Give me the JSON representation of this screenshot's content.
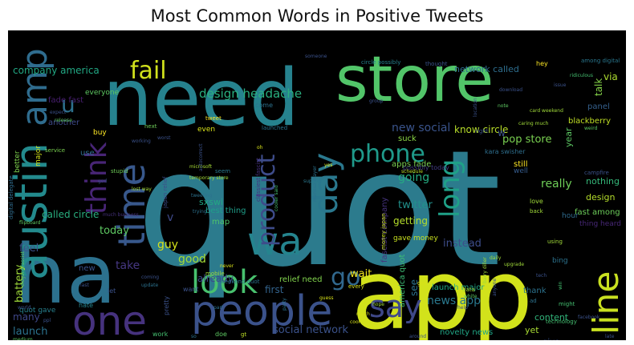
{
  "chart_data": {
    "type": "wordcloud",
    "title": "Most Common Words in Positive Tweets",
    "background": "#000000",
    "colormap": "viridis",
    "words": [
      {
        "text": "quot",
        "size": 200,
        "color": "#2c7b8d"
      },
      {
        "text": "app",
        "size": 120,
        "color": "#d2e21b"
      },
      {
        "text": "need",
        "size": 98,
        "color": "#26828e"
      },
      {
        "text": "store",
        "size": 78,
        "color": "#52c569"
      },
      {
        "text": "ha",
        "size": 102,
        "color": "#2c718e"
      },
      {
        "text": "austin",
        "size": 56,
        "color": "#238a8d"
      },
      {
        "text": "amp",
        "size": 44,
        "color": "#2f6c8e"
      },
      {
        "text": "people",
        "size": 52,
        "color": "#3b528b"
      },
      {
        "text": "one",
        "size": 50,
        "color": "#46327e"
      },
      {
        "text": "wa",
        "size": 48,
        "color": "#25848e"
      },
      {
        "text": "look",
        "size": 40,
        "color": "#48c16e"
      },
      {
        "text": "line",
        "size": 44,
        "color": "#c8e020"
      },
      {
        "text": "say",
        "size": 38,
        "color": "#3f4889"
      },
      {
        "text": "time",
        "size": 46,
        "color": "#38588c"
      },
      {
        "text": "think",
        "size": 36,
        "color": "#482576"
      },
      {
        "text": "day",
        "size": 42,
        "color": "#2a788e"
      },
      {
        "text": "product",
        "size": 30,
        "color": "#3e4c8a"
      },
      {
        "text": "phone",
        "size": 30,
        "color": "#1f9a8a"
      },
      {
        "text": "fail",
        "size": 30,
        "color": "#d0e11c"
      },
      {
        "text": "long",
        "size": 34,
        "color": "#1fa187"
      },
      {
        "text": "go",
        "size": 30,
        "color": "#31688e"
      },
      {
        "text": "u",
        "size": 28,
        "color": "#2d718e"
      },
      {
        "text": "design headache",
        "size": 15,
        "color": "#29af7f"
      },
      {
        "text": "company america",
        "size": 12,
        "color": "#22a884"
      },
      {
        "text": "new social",
        "size": 14,
        "color": "#3a548c"
      },
      {
        "text": "pop store",
        "size": 13,
        "color": "#7ad151"
      },
      {
        "text": "network called",
        "size": 11,
        "color": "#2e6e8e"
      },
      {
        "text": "going",
        "size": 14,
        "color": "#25ab82"
      },
      {
        "text": "really",
        "size": 14,
        "color": "#6ece58"
      },
      {
        "text": "twitter",
        "size": 13,
        "color": "#21918c"
      },
      {
        "text": "getting",
        "size": 12,
        "color": "#b5de2b"
      },
      {
        "text": "instead",
        "size": 13,
        "color": "#3d4d8a"
      },
      {
        "text": "wait",
        "size": 13,
        "color": "#f1e51d"
      },
      {
        "text": "news app",
        "size": 14,
        "color": "#2a788e"
      },
      {
        "text": "social network",
        "size": 13,
        "color": "#3b528b"
      },
      {
        "text": "good",
        "size": 14,
        "color": "#a5db36"
      },
      {
        "text": "take",
        "size": 14,
        "color": "#453781"
      },
      {
        "text": "guy",
        "size": 14,
        "color": "#d5e21a"
      },
      {
        "text": "today",
        "size": 13,
        "color": "#5ec962"
      },
      {
        "text": "feel",
        "size": 13,
        "color": "#3b528b"
      },
      {
        "text": "called circle",
        "size": 12,
        "color": "#29af7f"
      },
      {
        "text": "battery",
        "size": 13,
        "color": "#9fda3a"
      },
      {
        "text": "launch",
        "size": 13,
        "color": "#2c728e"
      },
      {
        "text": "many",
        "size": 12,
        "color": "#3f4788"
      },
      {
        "text": "first",
        "size": 12,
        "color": "#33638d"
      },
      {
        "text": "already",
        "size": 12,
        "color": "#3e4989"
      },
      {
        "text": "see",
        "size": 12,
        "color": "#2c728e"
      },
      {
        "text": "know circle",
        "size": 12,
        "color": "#b8de29"
      },
      {
        "text": "design",
        "size": 11,
        "color": "#b5de2b"
      },
      {
        "text": "nothing",
        "size": 11,
        "color": "#35b779"
      },
      {
        "text": "blackberry",
        "size": 10,
        "color": "#c0df25"
      },
      {
        "text": "panel",
        "size": 10,
        "color": "#35608d"
      },
      {
        "text": "talk",
        "size": 12,
        "color": "#86d549"
      },
      {
        "text": "via",
        "size": 12,
        "color": "#addc30"
      },
      {
        "text": "year",
        "size": 11,
        "color": "#5cc863"
      },
      {
        "text": "content",
        "size": 11,
        "color": "#31b57b"
      },
      {
        "text": "thank",
        "size": 10,
        "color": "#2c728e"
      },
      {
        "text": "yet",
        "size": 11,
        "color": "#a8db34"
      },
      {
        "text": "give",
        "size": 10,
        "color": "#3b528b"
      },
      {
        "text": "novelty news",
        "size": 10,
        "color": "#21a685"
      },
      {
        "text": "launch major",
        "size": 10,
        "color": "#22a785"
      },
      {
        "text": "america quot",
        "size": 10,
        "color": "#3dbc74"
      },
      {
        "text": "relief need",
        "size": 10,
        "color": "#81d34d"
      },
      {
        "text": "fascist company",
        "size": 10,
        "color": "#46337e"
      },
      {
        "text": "sxswi",
        "size": 11,
        "color": "#22a884"
      },
      {
        "text": "best thing",
        "size": 10,
        "color": "#1f9e89"
      },
      {
        "text": "map",
        "size": 10,
        "color": "#4fc46a"
      },
      {
        "text": "suck",
        "size": 10,
        "color": "#8bd646"
      },
      {
        "text": "still",
        "size": 10,
        "color": "#fde725"
      },
      {
        "text": "well",
        "size": 9,
        "color": "#365c8d"
      },
      {
        "text": "fast among",
        "size": 10,
        "color": "#6ccd5a"
      },
      {
        "text": "thing heard",
        "size": 9,
        "color": "#482878"
      },
      {
        "text": "apps fade",
        "size": 10,
        "color": "#7ad151"
      },
      {
        "text": "fade fast",
        "size": 10,
        "color": "#481f70"
      },
      {
        "text": "another",
        "size": 10,
        "color": "#3e4a89"
      },
      {
        "text": "use",
        "size": 10,
        "color": "#2e6e8e"
      },
      {
        "text": "everyone",
        "size": 9,
        "color": "#5ec962"
      },
      {
        "text": "buy",
        "size": 9,
        "color": "#fde725"
      },
      {
        "text": "even",
        "size": 9,
        "color": "#d8e219"
      },
      {
        "text": "come",
        "size": 8,
        "color": "#2c728e"
      },
      {
        "text": "gave money",
        "size": 9,
        "color": "#c8e020"
      },
      {
        "text": "possibly today",
        "size": 8,
        "color": "#433d84"
      },
      {
        "text": "kara swisher",
        "size": 8,
        "color": "#2e6f8e"
      },
      {
        "text": "bing",
        "size": 9,
        "color": "#2c728e"
      },
      {
        "text": "hour",
        "size": 9,
        "color": "#2f6b8e"
      },
      {
        "text": "quot gave",
        "size": 9,
        "color": "#27808e"
      },
      {
        "text": "better",
        "size": 9,
        "color": "#7fd34e"
      },
      {
        "text": "major",
        "size": 9,
        "color": "#d2e21b"
      },
      {
        "text": "new",
        "size": 10,
        "color": "#3b528b"
      },
      {
        "text": "thought",
        "size": 7,
        "color": "#3b528b"
      },
      {
        "text": "hey",
        "size": 8,
        "color": "#fde725"
      },
      {
        "text": "among digital",
        "size": 7,
        "color": "#2a778e"
      },
      {
        "text": "circle possibly",
        "size": 7,
        "color": "#26828e"
      },
      {
        "text": "someone",
        "size": 6,
        "color": "#3b528b"
      },
      {
        "text": "microsoft",
        "size": 6,
        "color": "#a5db36"
      },
      {
        "text": "temporary store",
        "size": 6,
        "color": "#a5db36"
      },
      {
        "text": "money japan",
        "size": 7,
        "color": "#c8e020"
      },
      {
        "text": "japan relief",
        "size": 7,
        "color": "#3d4e8a"
      },
      {
        "text": "classiest fascist",
        "size": 7,
        "color": "#46327e"
      },
      {
        "text": "digital delegate",
        "size": 7,
        "color": "#2f6c8e"
      },
      {
        "text": "flipboard",
        "size": 6,
        "color": "#5ec962"
      },
      {
        "text": "much business",
        "size": 6,
        "color": "#46327e"
      },
      {
        "text": "lost way",
        "size": 6,
        "color": "#a5db36"
      },
      {
        "text": "stupid",
        "size": 7,
        "color": "#6ece58"
      },
      {
        "text": "service",
        "size": 7,
        "color": "#7ad151"
      },
      {
        "text": "release",
        "size": 6,
        "color": "#5ec962"
      },
      {
        "text": "next",
        "size": 7,
        "color": "#6ece58"
      },
      {
        "text": "tweet",
        "size": 7,
        "color": "#fde725"
      },
      {
        "text": "launched",
        "size": 7,
        "color": "#2c728e"
      },
      {
        "text": "seem",
        "size": 7,
        "color": "#2a788e"
      },
      {
        "text": "support",
        "size": 6,
        "color": "#2a788e"
      },
      {
        "text": "schedule",
        "size": 6,
        "color": "#bddf26"
      },
      {
        "text": "mobile",
        "size": 7,
        "color": "#a0da39"
      },
      {
        "text": "weekend quot",
        "size": 7,
        "color": "#2c728e"
      },
      {
        "text": "want",
        "size": 8,
        "color": "#3b528b"
      },
      {
        "text": "let",
        "size": 8,
        "color": "#3b528b"
      },
      {
        "text": "pretty",
        "size": 8,
        "color": "#3b528b"
      },
      {
        "text": "hate",
        "size": 8,
        "color": "#25838e"
      },
      {
        "text": "work",
        "size": 8,
        "color": "#44bf70"
      },
      {
        "text": "doe",
        "size": 8,
        "color": "#5ec962"
      },
      {
        "text": "gt",
        "size": 7,
        "color": "#bddf26"
      },
      {
        "text": "so",
        "size": 6,
        "color": "#2c728e"
      },
      {
        "text": "part",
        "size": 6,
        "color": "#2c728e"
      },
      {
        "text": "guess",
        "size": 6,
        "color": "#d8e219"
      },
      {
        "text": "party",
        "size": 6,
        "color": "#2c728e"
      },
      {
        "text": "every",
        "size": 7,
        "color": "#d8e219"
      },
      {
        "text": "much",
        "size": 6,
        "color": "#d8e219"
      },
      {
        "text": "cool",
        "size": 6,
        "color": "#d8e219"
      },
      {
        "text": "got",
        "size": 7,
        "color": "#d8e219"
      },
      {
        "text": "data",
        "size": 7,
        "color": "#a0da39"
      },
      {
        "text": "white",
        "size": 6,
        "color": "#5ec962"
      },
      {
        "text": "help",
        "size": 6,
        "color": "#3b528b"
      },
      {
        "text": "anyone",
        "size": 6,
        "color": "#3b528b"
      },
      {
        "text": "around",
        "size": 6,
        "color": "#3b528b"
      },
      {
        "text": "ad",
        "size": 7,
        "color": "#2c728e"
      },
      {
        "text": "might",
        "size": 7,
        "color": "#44bf70"
      },
      {
        "text": "technology",
        "size": 7,
        "color": "#44bf70"
      },
      {
        "text": "barry diller",
        "size": 6,
        "color": "#a0da39"
      },
      {
        "text": "win",
        "size": 6,
        "color": "#44bf70"
      },
      {
        "text": "tech",
        "size": 6,
        "color": "#3b528b"
      },
      {
        "text": "ppl",
        "size": 6,
        "color": "#3b528b"
      },
      {
        "text": "last",
        "size": 6,
        "color": "#3b528b"
      },
      {
        "text": "medium",
        "size": 6,
        "color": "#5ec962"
      },
      {
        "text": "elegant fascist",
        "size": 6,
        "color": "#5ec962"
      },
      {
        "text": "worst",
        "size": 6,
        "color": "#3b528b"
      },
      {
        "text": "working",
        "size": 6,
        "color": "#3b528b"
      },
      {
        "text": "oh",
        "size": 6,
        "color": "#d8e219"
      },
      {
        "text": "expect",
        "size": 6,
        "color": "#3b528b"
      },
      {
        "text": "group",
        "size": 6,
        "color": "#3b528b"
      },
      {
        "text": "issue",
        "size": 6,
        "color": "#3b528b"
      },
      {
        "text": "ridiculous",
        "size": 6,
        "color": "#44bf70"
      },
      {
        "text": "card weekend",
        "size": 6,
        "color": "#a0da39"
      },
      {
        "text": "caring much",
        "size": 6,
        "color": "#a0da39"
      },
      {
        "text": "weird",
        "size": 6,
        "color": "#5ec962"
      },
      {
        "text": "note",
        "size": 6,
        "color": "#5ec962"
      },
      {
        "text": "location",
        "size": 6,
        "color": "#3b528b"
      },
      {
        "text": "download",
        "size": 6,
        "color": "#3b528b"
      },
      {
        "text": "right",
        "size": 7,
        "color": "#3b528b"
      },
      {
        "text": "tweeting",
        "size": 6,
        "color": "#2c728e"
      },
      {
        "text": "trying",
        "size": 6,
        "color": "#2c728e"
      },
      {
        "text": "love",
        "size": 8,
        "color": "#a0da39"
      },
      {
        "text": "back",
        "size": 7,
        "color": "#a0da39"
      },
      {
        "text": "using",
        "size": 7,
        "color": "#a0da39"
      },
      {
        "text": "upgrade",
        "size": 6,
        "color": "#a0da39"
      },
      {
        "text": "daily",
        "size": 6,
        "color": "#a0da39"
      },
      {
        "text": "hope",
        "size": 6,
        "color": "#a0da39"
      },
      {
        "text": "yes",
        "size": 6,
        "color": "#d8e219"
      },
      {
        "text": "never",
        "size": 6,
        "color": "#d8e219"
      },
      {
        "text": "coming",
        "size": 6,
        "color": "#3b528b"
      },
      {
        "text": "update",
        "size": 6,
        "color": "#2c728e"
      },
      {
        "text": "world",
        "size": 6,
        "color": "#3b528b"
      },
      {
        "text": "god",
        "size": 6,
        "color": "#3b528b"
      },
      {
        "text": "autocorrect",
        "size": 6,
        "color": "#3b528b"
      },
      {
        "text": "facebook",
        "size": 6,
        "color": "#3b528b"
      },
      {
        "text": "late",
        "size": 6,
        "color": "#3b528b"
      },
      {
        "text": "marissa mayer",
        "size": 6,
        "color": "#2c728e"
      },
      {
        "text": "cooler said",
        "size": 6,
        "color": "#44bf70"
      },
      {
        "text": "campfire",
        "size": 7,
        "color": "#3b528b"
      },
      {
        "text": "w",
        "size": 12,
        "color": "#3b528b"
      },
      {
        "text": "v",
        "size": 14,
        "color": "#3e4989"
      }
    ]
  }
}
